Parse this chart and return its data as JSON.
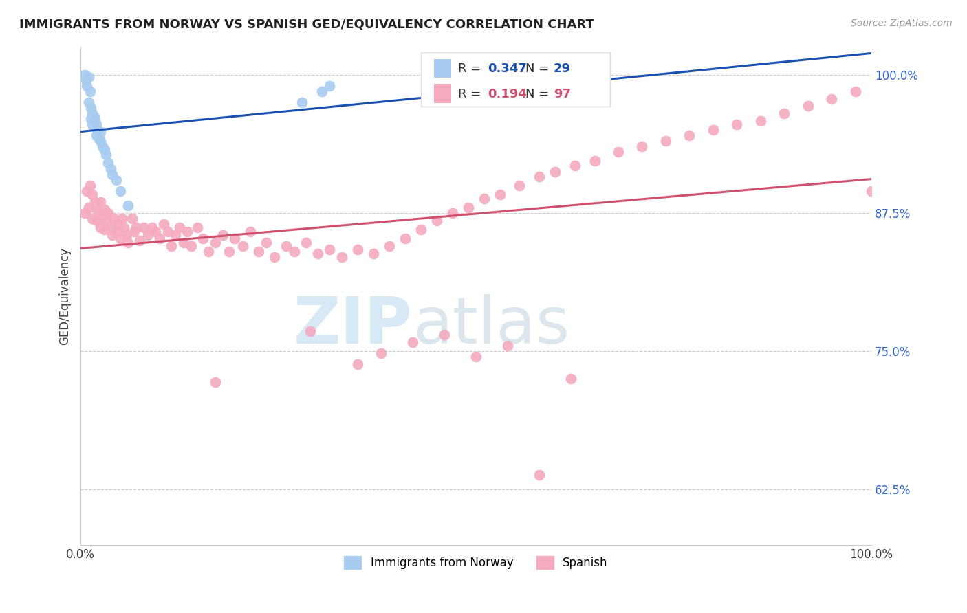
{
  "title": "IMMIGRANTS FROM NORWAY VS SPANISH GED/EQUIVALENCY CORRELATION CHART",
  "source": "Source: ZipAtlas.com",
  "ylabel": "GED/Equivalency",
  "xlim": [
    0.0,
    1.0
  ],
  "ylim": [
    0.575,
    1.025
  ],
  "yticks": [
    0.625,
    0.75,
    0.875,
    1.0
  ],
  "ytick_labels": [
    "62.5%",
    "75.0%",
    "87.5%",
    "100.0%"
  ],
  "legend_blue_R": "0.347",
  "legend_blue_N": "29",
  "legend_pink_R": "0.194",
  "legend_pink_N": "97",
  "blue_color": "#A8CCF0",
  "pink_color": "#F5AABF",
  "trendline_blue": "#1A50B0",
  "trendline_pink": "#D05070",
  "watermark_zip": "ZIP",
  "watermark_atlas": "atlas",
  "blue_scatter_x": [
    0.005,
    0.007,
    0.008,
    0.01,
    0.01,
    0.012,
    0.013,
    0.013,
    0.015,
    0.015,
    0.017,
    0.018,
    0.02,
    0.02,
    0.022,
    0.023,
    0.025,
    0.025,
    0.028,
    0.03,
    0.032,
    0.035,
    0.038,
    0.04,
    0.045,
    0.05,
    0.06,
    0.28,
    0.305,
    0.315
  ],
  "blue_scatter_y": [
    1.0,
    0.995,
    0.99,
    0.998,
    0.975,
    0.985,
    0.97,
    0.96,
    0.965,
    0.955,
    0.962,
    0.958,
    0.955,
    0.945,
    0.95,
    0.942,
    0.94,
    0.948,
    0.935,
    0.932,
    0.928,
    0.92,
    0.915,
    0.91,
    0.905,
    0.895,
    0.882,
    0.975,
    0.985,
    0.99
  ],
  "pink_scatter_x": [
    0.005,
    0.008,
    0.01,
    0.012,
    0.015,
    0.015,
    0.018,
    0.02,
    0.022,
    0.025,
    0.025,
    0.028,
    0.03,
    0.03,
    0.032,
    0.035,
    0.038,
    0.04,
    0.042,
    0.045,
    0.048,
    0.05,
    0.052,
    0.055,
    0.058,
    0.06,
    0.065,
    0.068,
    0.07,
    0.075,
    0.08,
    0.085,
    0.09,
    0.095,
    0.1,
    0.105,
    0.11,
    0.115,
    0.12,
    0.125,
    0.13,
    0.135,
    0.14,
    0.148,
    0.155,
    0.162,
    0.17,
    0.18,
    0.188,
    0.195,
    0.205,
    0.215,
    0.225,
    0.235,
    0.245,
    0.26,
    0.27,
    0.285,
    0.3,
    0.315,
    0.33,
    0.35,
    0.37,
    0.39,
    0.41,
    0.43,
    0.45,
    0.47,
    0.49,
    0.51,
    0.53,
    0.555,
    0.58,
    0.6,
    0.625,
    0.65,
    0.68,
    0.71,
    0.74,
    0.77,
    0.8,
    0.83,
    0.86,
    0.89,
    0.92,
    0.95,
    0.98,
    1.0,
    0.17,
    0.29,
    0.35,
    0.38,
    0.42,
    0.46,
    0.5,
    0.54,
    0.58,
    0.62
  ],
  "pink_scatter_y": [
    0.875,
    0.895,
    0.88,
    0.9,
    0.87,
    0.892,
    0.885,
    0.868,
    0.876,
    0.862,
    0.885,
    0.872,
    0.86,
    0.878,
    0.868,
    0.875,
    0.862,
    0.855,
    0.87,
    0.858,
    0.865,
    0.852,
    0.87,
    0.862,
    0.855,
    0.848,
    0.87,
    0.858,
    0.862,
    0.85,
    0.862,
    0.855,
    0.862,
    0.858,
    0.852,
    0.865,
    0.858,
    0.845,
    0.855,
    0.862,
    0.848,
    0.858,
    0.845,
    0.862,
    0.852,
    0.84,
    0.848,
    0.855,
    0.84,
    0.852,
    0.845,
    0.858,
    0.84,
    0.848,
    0.835,
    0.845,
    0.84,
    0.848,
    0.838,
    0.842,
    0.835,
    0.842,
    0.838,
    0.845,
    0.852,
    0.86,
    0.868,
    0.875,
    0.88,
    0.888,
    0.892,
    0.9,
    0.908,
    0.912,
    0.918,
    0.922,
    0.93,
    0.935,
    0.94,
    0.945,
    0.95,
    0.955,
    0.958,
    0.965,
    0.972,
    0.978,
    0.985,
    0.895,
    0.722,
    0.768,
    0.738,
    0.748,
    0.758,
    0.765,
    0.745,
    0.755,
    0.638,
    0.725
  ]
}
